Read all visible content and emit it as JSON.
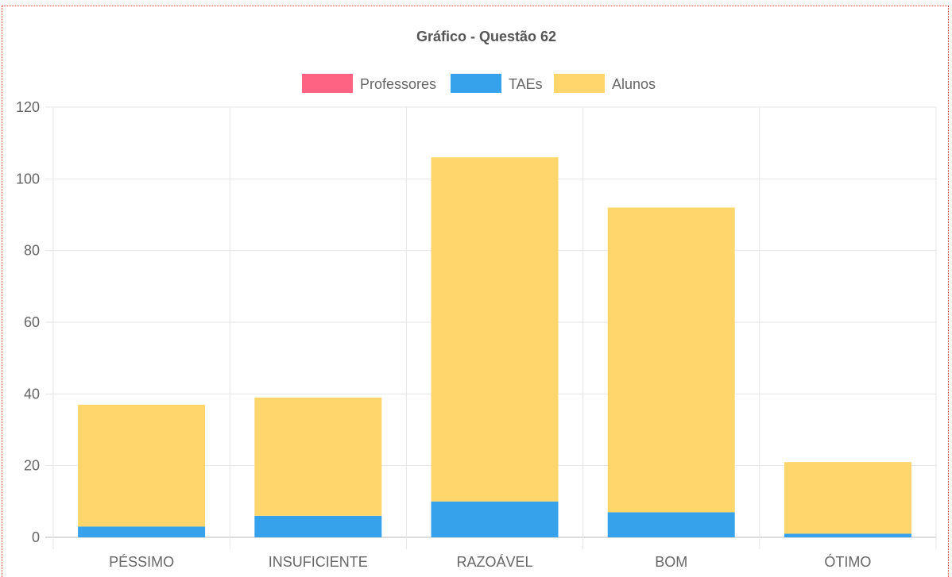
{
  "chart_data": {
    "type": "bar",
    "stacked": true,
    "title": "Gráfico - Questão 62",
    "categories": [
      "PÉSSIMO",
      "INSUFICIENTE",
      "RAZOÁVEL",
      "BOM",
      "ÓTIMO"
    ],
    "series": [
      {
        "name": "Professores",
        "color": "#ff6384",
        "values": [
          0,
          0,
          0,
          0,
          0
        ]
      },
      {
        "name": "TAEs",
        "color": "#36a2eb",
        "values": [
          3,
          6,
          10,
          7,
          1
        ]
      },
      {
        "name": "Alunos",
        "color": "#ffd66b",
        "values": [
          34,
          33,
          96,
          85,
          20
        ]
      }
    ],
    "ylim": [
      0,
      120
    ],
    "yticks": [
      "0",
      "20",
      "40",
      "60",
      "80",
      "100",
      "120"
    ],
    "xlabel": "",
    "ylabel": "",
    "grid": true,
    "legend_position": "top"
  }
}
